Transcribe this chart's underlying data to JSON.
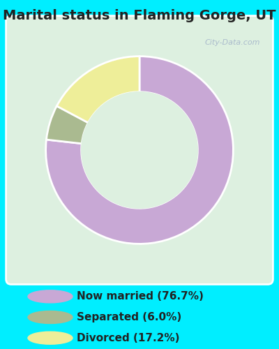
{
  "title": "Marital status in Flaming Gorge, UT",
  "title_fontsize": 14,
  "title_color": "#222222",
  "title_fontweight": "bold",
  "bg_cyan": "#00eeff",
  "chart_bg_color": "#ddf0e0",
  "chart_inner_color": "#e8f5e9",
  "slices": [
    {
      "label": "Now married (76.7%)",
      "value": 76.7,
      "color": "#c8a8d5"
    },
    {
      "label": "Separated (6.0%)",
      "value": 6.0,
      "color": "#aaba90"
    },
    {
      "label": "Divorced (17.2%)",
      "value": 17.2,
      "color": "#eeee99"
    }
  ],
  "start_angle": 90,
  "legend_fontsize": 11,
  "legend_color": "#222222",
  "watermark": "City-Data.com",
  "watermark_color": "#aabbcc"
}
